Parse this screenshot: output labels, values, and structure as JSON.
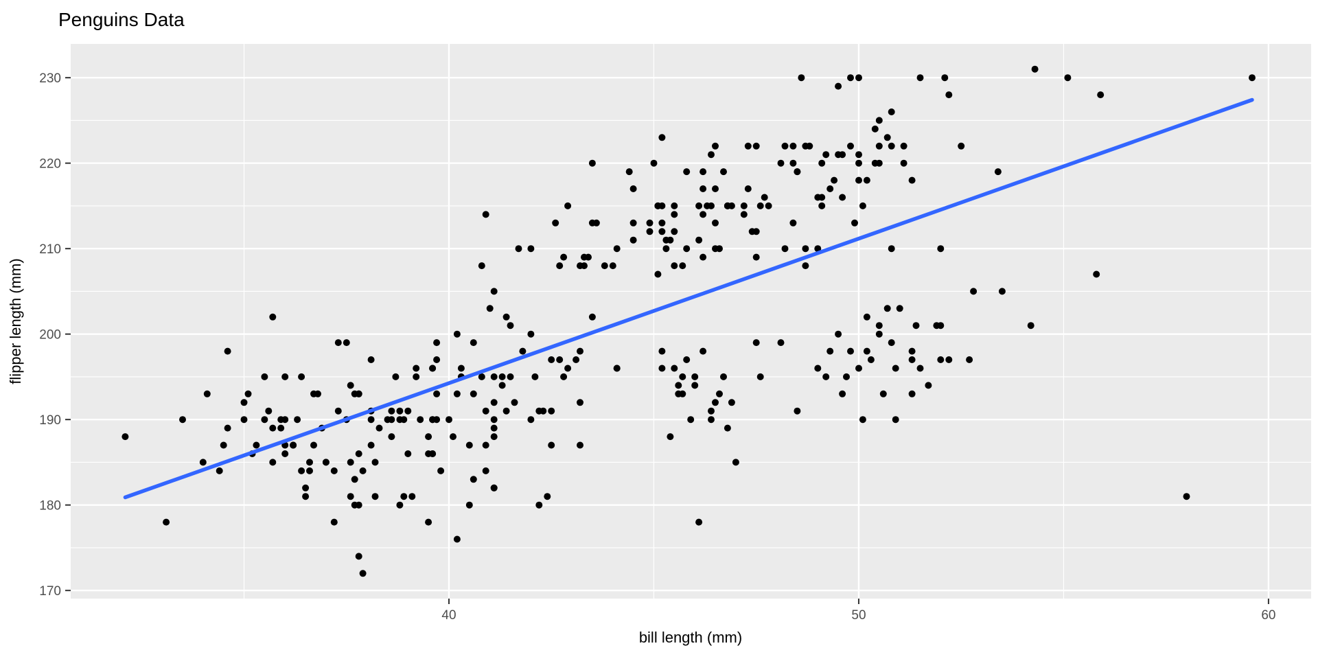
{
  "chart_data": {
    "type": "scatter",
    "title": "Penguins Data",
    "xlabel": "bill length (mm)",
    "ylabel": "flipper length (mm)",
    "xlim": [
      30.77,
      61.04
    ],
    "ylim": [
      169.05,
      233.95
    ],
    "grid": true,
    "legend_position": "none",
    "x_ticks": {
      "major": [
        40,
        50,
        60
      ],
      "minor": [
        35,
        45,
        55
      ],
      "labels": [
        "40",
        "50",
        "60"
      ]
    },
    "y_ticks": {
      "major": [
        170,
        180,
        190,
        200,
        210,
        220,
        230
      ],
      "minor": [
        175,
        185,
        195,
        205,
        215,
        225
      ],
      "labels": [
        "170",
        "180",
        "190",
        "200",
        "210",
        "220",
        "230"
      ]
    },
    "style": {
      "panel_background": "#EBEBEB",
      "grid_color": "#FFFFFF",
      "point_color": "#000000",
      "point_radius": 5,
      "tick_mark_color": "#333333",
      "tick_label_color": "#4D4D4D",
      "trend_color": "#3366FF",
      "trend_width": 5.5
    },
    "trend_line": {
      "method": "linear",
      "color": "#3366FF",
      "x_start": 32.1,
      "y_start": 180.9,
      "x_end": 59.6,
      "y_end": 227.4
    },
    "points": [
      [
        39.1,
        181
      ],
      [
        39.5,
        186
      ],
      [
        40.3,
        195
      ],
      [
        36.7,
        193
      ],
      [
        39.3,
        190
      ],
      [
        38.9,
        181
      ],
      [
        39.2,
        195
      ],
      [
        34.1,
        193
      ],
      [
        42.0,
        190
      ],
      [
        37.8,
        186
      ],
      [
        37.8,
        180
      ],
      [
        41.1,
        182
      ],
      [
        38.6,
        191
      ],
      [
        34.6,
        198
      ],
      [
        36.6,
        185
      ],
      [
        38.7,
        195
      ],
      [
        42.5,
        197
      ],
      [
        34.4,
        184
      ],
      [
        46.0,
        194
      ],
      [
        37.8,
        174
      ],
      [
        37.7,
        180
      ],
      [
        35.9,
        189
      ],
      [
        38.2,
        185
      ],
      [
        38.8,
        180
      ],
      [
        35.3,
        187
      ],
      [
        40.6,
        183
      ],
      [
        40.5,
        187
      ],
      [
        37.9,
        172
      ],
      [
        40.5,
        180
      ],
      [
        39.5,
        178
      ],
      [
        37.2,
        178
      ],
      [
        39.5,
        188
      ],
      [
        40.9,
        184
      ],
      [
        36.4,
        195
      ],
      [
        39.2,
        196
      ],
      [
        38.8,
        190
      ],
      [
        42.2,
        180
      ],
      [
        37.6,
        181
      ],
      [
        39.8,
        184
      ],
      [
        36.5,
        182
      ],
      [
        40.8,
        195
      ],
      [
        36.0,
        186
      ],
      [
        44.1,
        196
      ],
      [
        37.0,
        185
      ],
      [
        39.6,
        190
      ],
      [
        41.1,
        182
      ],
      [
        37.5,
        190
      ],
      [
        36.0,
        190
      ],
      [
        42.3,
        191
      ],
      [
        39.6,
        186
      ],
      [
        40.1,
        188
      ],
      [
        35.0,
        190
      ],
      [
        42.0,
        200
      ],
      [
        34.5,
        187
      ],
      [
        41.4,
        191
      ],
      [
        39.0,
        186
      ],
      [
        40.6,
        193
      ],
      [
        36.5,
        181
      ],
      [
        37.6,
        194
      ],
      [
        35.7,
        185
      ],
      [
        41.3,
        195
      ],
      [
        37.6,
        185
      ],
      [
        41.1,
        192
      ],
      [
        36.4,
        184
      ],
      [
        41.6,
        192
      ],
      [
        35.5,
        195
      ],
      [
        41.1,
        188
      ],
      [
        35.9,
        190
      ],
      [
        41.8,
        198
      ],
      [
        33.5,
        190
      ],
      [
        39.7,
        190
      ],
      [
        39.6,
        196
      ],
      [
        45.8,
        197
      ],
      [
        35.5,
        190
      ],
      [
        42.8,
        195
      ],
      [
        40.9,
        191
      ],
      [
        37.2,
        184
      ],
      [
        36.2,
        187
      ],
      [
        42.1,
        195
      ],
      [
        34.6,
        189
      ],
      [
        42.9,
        196
      ],
      [
        36.7,
        187
      ],
      [
        35.1,
        193
      ],
      [
        37.3,
        191
      ],
      [
        41.3,
        194
      ],
      [
        36.3,
        190
      ],
      [
        36.9,
        189
      ],
      [
        38.3,
        189
      ],
      [
        38.9,
        190
      ],
      [
        35.7,
        202
      ],
      [
        41.1,
        205
      ],
      [
        34.0,
        185
      ],
      [
        39.6,
        186
      ],
      [
        36.2,
        187
      ],
      [
        40.8,
        208
      ],
      [
        38.1,
        190
      ],
      [
        40.3,
        196
      ],
      [
        33.1,
        178
      ],
      [
        43.2,
        192
      ],
      [
        35.0,
        192
      ],
      [
        41.0,
        203
      ],
      [
        37.7,
        183
      ],
      [
        37.8,
        193
      ],
      [
        37.9,
        184
      ],
      [
        39.7,
        199
      ],
      [
        38.6,
        190
      ],
      [
        38.2,
        181
      ],
      [
        38.1,
        197
      ],
      [
        43.2,
        198
      ],
      [
        38.1,
        191
      ],
      [
        45.6,
        193
      ],
      [
        39.7,
        197
      ],
      [
        42.2,
        191
      ],
      [
        39.6,
        196
      ],
      [
        42.7,
        197
      ],
      [
        38.6,
        188
      ],
      [
        37.3,
        199
      ],
      [
        35.7,
        189
      ],
      [
        41.1,
        189
      ],
      [
        36.2,
        187
      ],
      [
        37.7,
        193
      ],
      [
        40.2,
        176
      ],
      [
        41.4,
        202
      ],
      [
        35.2,
        186
      ],
      [
        40.6,
        199
      ],
      [
        38.8,
        191
      ],
      [
        41.5,
        195
      ],
      [
        39.0,
        191
      ],
      [
        44.1,
        210
      ],
      [
        38.5,
        190
      ],
      [
        43.1,
        197
      ],
      [
        36.8,
        193
      ],
      [
        37.5,
        199
      ],
      [
        38.1,
        187
      ],
      [
        41.1,
        190
      ],
      [
        35.6,
        191
      ],
      [
        40.2,
        200
      ],
      [
        37.0,
        185
      ],
      [
        39.7,
        193
      ],
      [
        40.2,
        193
      ],
      [
        36.6,
        184
      ],
      [
        36.0,
        195
      ],
      [
        37.8,
        193
      ],
      [
        36.0,
        187
      ],
      [
        41.5,
        201
      ],
      [
        40.0,
        190
      ],
      [
        44.1,
        196
      ],
      [
        39.6,
        190
      ],
      [
        41.1,
        195
      ],
      [
        32.1,
        188
      ],
      [
        46.5,
        192
      ],
      [
        50.0,
        196
      ],
      [
        51.3,
        193
      ],
      [
        45.4,
        188
      ],
      [
        52.7,
        197
      ],
      [
        45.2,
        198
      ],
      [
        46.1,
        178
      ],
      [
        51.3,
        197
      ],
      [
        46.0,
        195
      ],
      [
        51.3,
        198
      ],
      [
        46.6,
        193
      ],
      [
        51.7,
        194
      ],
      [
        47.0,
        185
      ],
      [
        52.0,
        201
      ],
      [
        45.9,
        190
      ],
      [
        50.5,
        201
      ],
      [
        50.3,
        197
      ],
      [
        58.0,
        181
      ],
      [
        46.4,
        190
      ],
      [
        49.2,
        195
      ],
      [
        42.4,
        181
      ],
      [
        48.5,
        191
      ],
      [
        43.2,
        187
      ],
      [
        50.6,
        193
      ],
      [
        46.7,
        195
      ],
      [
        52.0,
        197
      ],
      [
        50.5,
        200
      ],
      [
        49.5,
        200
      ],
      [
        46.4,
        191
      ],
      [
        52.8,
        205
      ],
      [
        40.9,
        187
      ],
      [
        54.2,
        201
      ],
      [
        42.5,
        187
      ],
      [
        51.0,
        203
      ],
      [
        49.7,
        195
      ],
      [
        47.5,
        199
      ],
      [
        47.6,
        195
      ],
      [
        52.0,
        210
      ],
      [
        46.9,
        192
      ],
      [
        53.5,
        205
      ],
      [
        49.0,
        210
      ],
      [
        46.2,
        198
      ],
      [
        50.9,
        196
      ],
      [
        45.5,
        196
      ],
      [
        50.9,
        190
      ],
      [
        50.8,
        199
      ],
      [
        50.1,
        190
      ],
      [
        49.0,
        196
      ],
      [
        51.5,
        196
      ],
      [
        49.8,
        198
      ],
      [
        48.1,
        199
      ],
      [
        51.4,
        201
      ],
      [
        45.7,
        193
      ],
      [
        50.7,
        203
      ],
      [
        42.5,
        191
      ],
      [
        52.2,
        197
      ],
      [
        45.2,
        196
      ],
      [
        49.3,
        198
      ],
      [
        50.2,
        202
      ],
      [
        45.6,
        194
      ],
      [
        51.9,
        201
      ],
      [
        46.8,
        189
      ],
      [
        45.7,
        195
      ],
      [
        55.8,
        207
      ],
      [
        43.5,
        202
      ],
      [
        49.6,
        193
      ],
      [
        50.8,
        210
      ],
      [
        50.2,
        198
      ],
      [
        46.1,
        211
      ],
      [
        50.0,
        230
      ],
      [
        48.7,
        210
      ],
      [
        50.0,
        218
      ],
      [
        47.6,
        215
      ],
      [
        46.5,
        210
      ],
      [
        45.4,
        211
      ],
      [
        46.7,
        219
      ],
      [
        43.3,
        209
      ],
      [
        46.8,
        215
      ],
      [
        40.9,
        214
      ],
      [
        49.0,
        216
      ],
      [
        45.5,
        214
      ],
      [
        48.4,
        213
      ],
      [
        45.8,
        210
      ],
      [
        49.3,
        217
      ],
      [
        42.0,
        210
      ],
      [
        49.2,
        221
      ],
      [
        46.2,
        209
      ],
      [
        48.7,
        222
      ],
      [
        50.2,
        218
      ],
      [
        45.1,
        215
      ],
      [
        46.5,
        213
      ],
      [
        46.3,
        215
      ],
      [
        42.9,
        215
      ],
      [
        46.1,
        215
      ],
      [
        44.5,
        213
      ],
      [
        47.8,
        215
      ],
      [
        48.2,
        210
      ],
      [
        50.0,
        220
      ],
      [
        47.3,
        222
      ],
      [
        42.8,
        209
      ],
      [
        45.1,
        207
      ],
      [
        59.6,
        230
      ],
      [
        49.1,
        220
      ],
      [
        48.4,
        222
      ],
      [
        42.6,
        213
      ],
      [
        44.4,
        219
      ],
      [
        44.0,
        208
      ],
      [
        48.7,
        208
      ],
      [
        42.7,
        208
      ],
      [
        49.6,
        221
      ],
      [
        45.3,
        210
      ],
      [
        49.6,
        216
      ],
      [
        50.5,
        222
      ],
      [
        43.6,
        213
      ],
      [
        45.5,
        215
      ],
      [
        50.5,
        220
      ],
      [
        44.9,
        212
      ],
      [
        45.2,
        223
      ],
      [
        46.6,
        210
      ],
      [
        48.5,
        219
      ],
      [
        45.1,
        215
      ],
      [
        50.1,
        215
      ],
      [
        46.5,
        222
      ],
      [
        45.0,
        220
      ],
      [
        43.8,
        208
      ],
      [
        45.5,
        208
      ],
      [
        43.2,
        208
      ],
      [
        50.4,
        220
      ],
      [
        45.3,
        211
      ],
      [
        46.2,
        219
      ],
      [
        45.7,
        208
      ],
      [
        54.3,
        231
      ],
      [
        45.8,
        219
      ],
      [
        49.8,
        230
      ],
      [
        46.2,
        214
      ],
      [
        49.5,
        229
      ],
      [
        43.5,
        220
      ],
      [
        50.7,
        223
      ],
      [
        47.7,
        216
      ],
      [
        46.4,
        221
      ],
      [
        48.2,
        222
      ],
      [
        46.5,
        217
      ],
      [
        46.4,
        215
      ],
      [
        48.6,
        230
      ],
      [
        47.5,
        209
      ],
      [
        51.1,
        220
      ],
      [
        45.2,
        215
      ],
      [
        45.2,
        213
      ],
      [
        49.1,
        215
      ],
      [
        52.5,
        222
      ],
      [
        47.4,
        212
      ],
      [
        50.0,
        221
      ],
      [
        44.9,
        213
      ],
      [
        50.8,
        222
      ],
      [
        43.4,
        209
      ],
      [
        51.3,
        218
      ],
      [
        47.5,
        212
      ],
      [
        52.1,
        230
      ],
      [
        47.5,
        222
      ],
      [
        52.2,
        228
      ],
      [
        45.5,
        212
      ],
      [
        49.5,
        221
      ],
      [
        44.5,
        211
      ],
      [
        50.8,
        226
      ],
      [
        49.4,
        218
      ],
      [
        46.9,
        215
      ],
      [
        48.4,
        220
      ],
      [
        51.1,
        222
      ],
      [
        48.5,
        219
      ],
      [
        55.9,
        228
      ],
      [
        47.2,
        215
      ],
      [
        49.1,
        216
      ],
      [
        47.3,
        217
      ],
      [
        46.8,
        215
      ],
      [
        41.7,
        210
      ],
      [
        53.4,
        219
      ],
      [
        43.3,
        208
      ],
      [
        48.1,
        220
      ],
      [
        50.5,
        225
      ],
      [
        49.8,
        222
      ],
      [
        43.5,
        213
      ],
      [
        51.5,
        230
      ],
      [
        46.2,
        217
      ],
      [
        55.1,
        230
      ],
      [
        44.5,
        217
      ],
      [
        48.8,
        222
      ],
      [
        47.2,
        214
      ],
      [
        46.8,
        215
      ],
      [
        50.4,
        224
      ],
      [
        45.2,
        212
      ],
      [
        49.9,
        213
      ]
    ]
  }
}
